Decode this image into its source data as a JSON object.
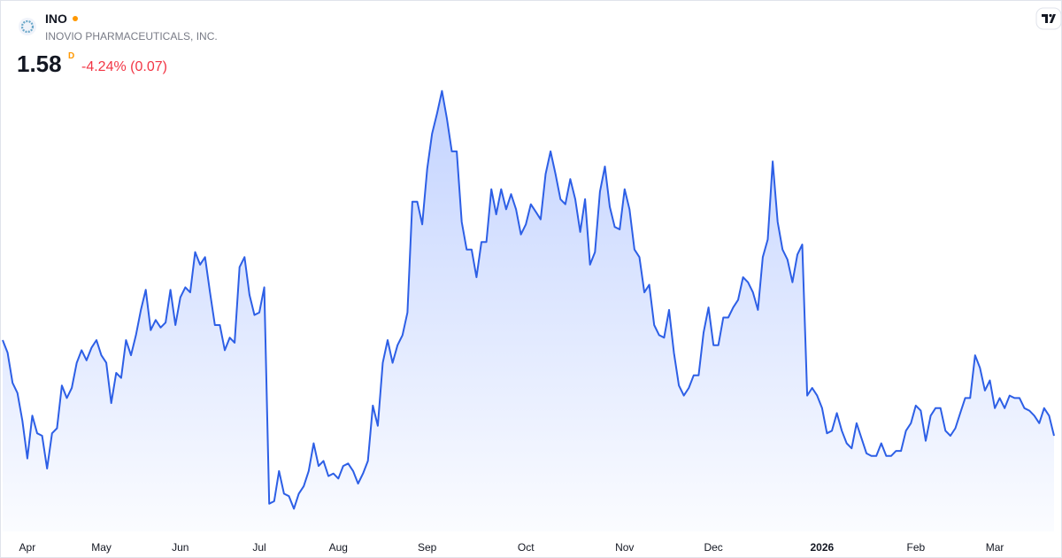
{
  "header": {
    "symbol": "INO",
    "company": "INOVIO PHARMACEUTICALS, INC.",
    "price": 1.58,
    "interval": "D",
    "change": "-4.24% (0.07)"
  },
  "chart_data": {
    "type": "line",
    "series": [
      {
        "name": "INO",
        "color": "#2d5fe6",
        "values": [
          1.96,
          1.91,
          1.79,
          1.75,
          1.64,
          1.49,
          1.66,
          1.59,
          1.58,
          1.45,
          1.59,
          1.61,
          1.78,
          1.73,
          1.77,
          1.87,
          1.92,
          1.88,
          1.93,
          1.96,
          1.9,
          1.87,
          1.71,
          1.83,
          1.81,
          1.96,
          1.9,
          1.98,
          2.08,
          2.16,
          2.0,
          2.04,
          2.01,
          2.03,
          2.16,
          2.02,
          2.13,
          2.17,
          2.15,
          2.31,
          2.26,
          2.29,
          2.15,
          2.02,
          2.02,
          1.92,
          1.97,
          1.95,
          2.25,
          2.29,
          2.14,
          2.06,
          2.07,
          2.17,
          1.31,
          1.32,
          1.44,
          1.35,
          1.34,
          1.29,
          1.35,
          1.38,
          1.44,
          1.55,
          1.46,
          1.48,
          1.42,
          1.43,
          1.41,
          1.46,
          1.47,
          1.44,
          1.39,
          1.43,
          1.48,
          1.7,
          1.62,
          1.87,
          1.96,
          1.87,
          1.94,
          1.98,
          2.07,
          2.51,
          2.51,
          2.42,
          2.64,
          2.78,
          2.86,
          2.95,
          2.84,
          2.71,
          2.71,
          2.43,
          2.32,
          2.32,
          2.21,
          2.35,
          2.35,
          2.56,
          2.46,
          2.56,
          2.48,
          2.54,
          2.48,
          2.38,
          2.42,
          2.5,
          2.47,
          2.44,
          2.62,
          2.71,
          2.62,
          2.52,
          2.5,
          2.6,
          2.52,
          2.39,
          2.52,
          2.26,
          2.31,
          2.55,
          2.65,
          2.49,
          2.41,
          2.4,
          2.56,
          2.48,
          2.32,
          2.29,
          2.15,
          2.18,
          2.02,
          1.98,
          1.97,
          2.08,
          1.91,
          1.78,
          1.74,
          1.77,
          1.82,
          1.82,
          1.99,
          2.09,
          1.94,
          1.94,
          2.05,
          2.05,
          2.09,
          2.12,
          2.21,
          2.19,
          2.15,
          2.08,
          2.29,
          2.36,
          2.67,
          2.43,
          2.32,
          2.28,
          2.19,
          2.3,
          2.34,
          1.74,
          1.77,
          1.74,
          1.69,
          1.59,
          1.6,
          1.67,
          1.6,
          1.55,
          1.53,
          1.63,
          1.57,
          1.51,
          1.5,
          1.5,
          1.55,
          1.5,
          1.5,
          1.52,
          1.52,
          1.6,
          1.63,
          1.7,
          1.68,
          1.56,
          1.66,
          1.69,
          1.69,
          1.6,
          1.58,
          1.61,
          1.67,
          1.73,
          1.73,
          1.9,
          1.85,
          1.76,
          1.8,
          1.69,
          1.73,
          1.69,
          1.74,
          1.73,
          1.73,
          1.69,
          1.68,
          1.66,
          1.63,
          1.69,
          1.66,
          1.58
        ]
      }
    ],
    "xlim": [
      0,
      213
    ],
    "xticks": [
      {
        "value": 5,
        "label": "Apr"
      },
      {
        "value": 20,
        "label": "May"
      },
      {
        "value": 36,
        "label": "Jun"
      },
      {
        "value": 52,
        "label": "Jul"
      },
      {
        "value": 68,
        "label": "Aug"
      },
      {
        "value": 86,
        "label": "Sep"
      },
      {
        "value": 106,
        "label": "Oct"
      },
      {
        "value": 126,
        "label": "Nov"
      },
      {
        "value": 144,
        "label": "Dec"
      },
      {
        "value": 166,
        "label": "2026",
        "bold": true
      },
      {
        "value": 185,
        "label": "Feb"
      },
      {
        "value": 201,
        "label": "Mar"
      }
    ],
    "ylim": [
      1.2,
      3.03
    ],
    "area_fill": true
  }
}
